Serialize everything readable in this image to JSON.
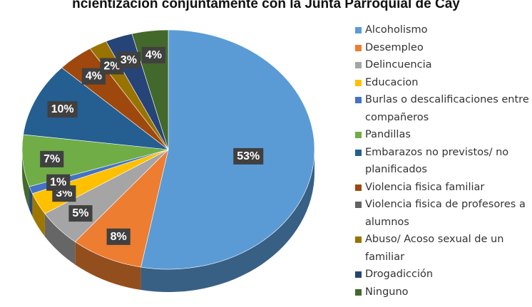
{
  "chart_data": {
    "type": "pie",
    "title": "ncientización conjuntamente con la Junta Parroquial de Cay",
    "categories": [
      "Alcoholismo",
      "Desempleo",
      "Delincuencia",
      "Educacion",
      "Burlas o descalificaciones entre compañeros",
      "Pandillas",
      "Embarazos no previstos/ no planificados",
      "Violencia fisica familiar",
      "Violencia fisica de profesores a alumnos",
      "Abuso/ Acoso sexual de un familiar",
      "Drogadicción",
      "Ninguno"
    ],
    "values": [
      53,
      8,
      5,
      3,
      1,
      7,
      10,
      4,
      0,
      2,
      3,
      4
    ],
    "value_labels": [
      "53%",
      "8%",
      "5%",
      "3%",
      "1%",
      "7%",
      "10%",
      "4%",
      null,
      "2%",
      "3%",
      "4%"
    ],
    "colors": [
      "#5b9bd5",
      "#ed7d31",
      "#a5a5a5",
      "#ffc000",
      "#4472c4",
      "#70ad47",
      "#255e91",
      "#9e480e",
      "#636363",
      "#997300",
      "#264478",
      "#43682b"
    ]
  }
}
